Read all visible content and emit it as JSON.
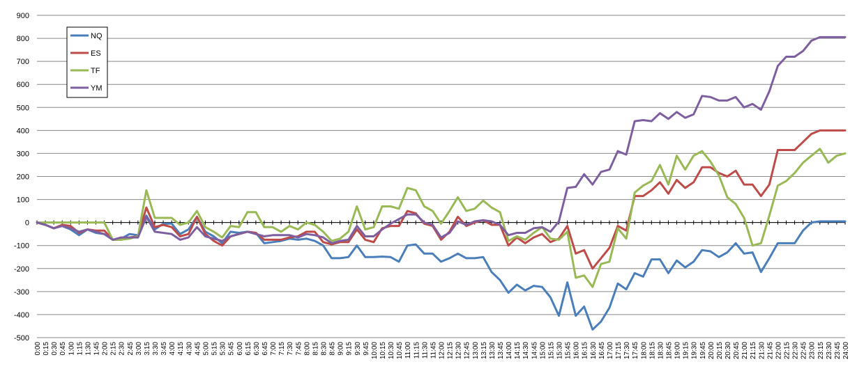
{
  "chart_data": {
    "type": "line",
    "title": "",
    "xlabel": "",
    "ylabel": "",
    "ylim": [
      -500,
      900
    ],
    "yticks": [
      -500,
      -400,
      -300,
      -200,
      -100,
      0,
      100,
      200,
      300,
      400,
      500,
      600,
      700,
      800,
      900
    ],
    "grid": "horizontal",
    "legend_position": "top-left",
    "x": [
      "0:00",
      "0:15",
      "0:30",
      "0:45",
      "1:00",
      "1:15",
      "1:30",
      "1:45",
      "2:00",
      "2:15",
      "2:30",
      "2:45",
      "3:00",
      "3:15",
      "3:30",
      "3:45",
      "4:00",
      "4:15",
      "4:30",
      "4:45",
      "5:00",
      "5:15",
      "5:30",
      "5:45",
      "6:00",
      "6:15",
      "6:30",
      "6:45",
      "7:00",
      "7:15",
      "7:30",
      "7:45",
      "8:00",
      "8:15",
      "8:30",
      "8:45",
      "9:00",
      "9:15",
      "9:30",
      "9:45",
      "10:00",
      "10:15",
      "10:30",
      "10:45",
      "11:00",
      "11:15",
      "11:30",
      "11:45",
      "12:00",
      "12:15",
      "12:30",
      "12:45",
      "13:00",
      "13:15",
      "13:30",
      "13:45",
      "14:00",
      "14:15",
      "14:30",
      "14:45",
      "15:00",
      "15:15",
      "15:30",
      "15:45",
      "16:00",
      "16:15",
      "16:30",
      "16:45",
      "17:00",
      "17:15",
      "17:30",
      "17:45",
      "18:00",
      "18:15",
      "18:30",
      "18:45",
      "19:00",
      "19:15",
      "19:30",
      "19:45",
      "20:00",
      "20:15",
      "20:30",
      "20:45",
      "21:00",
      "21:15",
      "21:30",
      "21:45",
      "22:00",
      "22:15",
      "22:30",
      "22:45",
      "23:00",
      "23:15",
      "23:30",
      "23:45",
      "24:00"
    ],
    "series": [
      {
        "name": "NQ",
        "color": "#4a7ebb",
        "values": [
          0,
          -10,
          -25,
          -15,
          -30,
          -55,
          -30,
          -45,
          -50,
          -75,
          -70,
          -50,
          -55,
          30,
          -30,
          -5,
          -5,
          -50,
          -30,
          25,
          -40,
          -60,
          -90,
          -40,
          -45,
          -40,
          -45,
          -90,
          -85,
          -80,
          -70,
          -75,
          -70,
          -80,
          -100,
          -155,
          -155,
          -150,
          -100,
          -150,
          -150,
          -148,
          -150,
          -170,
          -100,
          -95,
          -135,
          -135,
          -170,
          -155,
          -135,
          -155,
          -155,
          -150,
          -215,
          -250,
          -305,
          -270,
          -295,
          -275,
          -280,
          -325,
          -405,
          -260,
          -405,
          -365,
          -465,
          -430,
          -370,
          -265,
          -290,
          -220,
          -235,
          -160,
          -160,
          -220,
          -165,
          -195,
          -170,
          -120,
          -125,
          -150,
          -130,
          -90,
          -135,
          -130,
          -215,
          -155,
          -90,
          -90,
          -90,
          -35,
          0,
          5,
          5,
          5,
          5
        ]
      },
      {
        "name": "ES",
        "color": "#be4b48",
        "values": [
          0,
          -10,
          -25,
          -10,
          -15,
          -45,
          -30,
          -35,
          -35,
          -75,
          -75,
          -65,
          -60,
          65,
          -20,
          -10,
          -20,
          -60,
          -50,
          25,
          -50,
          -80,
          -100,
          -60,
          -50,
          -40,
          -45,
          -75,
          -75,
          -75,
          -65,
          -60,
          -40,
          -40,
          -85,
          -95,
          -85,
          -85,
          -30,
          -75,
          -85,
          -25,
          -15,
          -15,
          50,
          40,
          -5,
          -15,
          -75,
          -40,
          25,
          -15,
          0,
          10,
          -10,
          -10,
          -100,
          -65,
          -90,
          -65,
          -50,
          -85,
          -70,
          -15,
          -135,
          -120,
          -200,
          -155,
          -110,
          -15,
          -35,
          115,
          115,
          140,
          175,
          125,
          185,
          150,
          175,
          240,
          240,
          215,
          200,
          225,
          165,
          165,
          115,
          165,
          315,
          315,
          315,
          350,
          385,
          400,
          400,
          400,
          400
        ]
      },
      {
        "name": "TF",
        "color": "#98b954",
        "values": [
          0,
          0,
          0,
          0,
          0,
          0,
          0,
          0,
          0,
          -75,
          -75,
          -70,
          -60,
          140,
          20,
          20,
          20,
          -10,
          0,
          50,
          -20,
          -40,
          -65,
          -15,
          -20,
          45,
          45,
          -20,
          -20,
          -40,
          -15,
          -30,
          0,
          -10,
          -40,
          -80,
          -70,
          -40,
          70,
          -30,
          -20,
          70,
          70,
          60,
          150,
          140,
          70,
          50,
          -5,
          50,
          110,
          50,
          60,
          95,
          65,
          45,
          -80,
          -60,
          -75,
          -45,
          -20,
          -70,
          -75,
          -40,
          -240,
          -230,
          -280,
          -180,
          -170,
          -25,
          -70,
          130,
          160,
          180,
          250,
          165,
          290,
          230,
          290,
          310,
          265,
          205,
          110,
          80,
          20,
          -100,
          -90,
          30,
          160,
          180,
          215,
          260,
          290,
          320,
          260,
          290,
          300
        ]
      },
      {
        "name": "YM",
        "color": "#7d5fa0",
        "values": [
          0,
          -10,
          -25,
          -15,
          -25,
          -40,
          -30,
          -40,
          -50,
          -75,
          -65,
          -65,
          -65,
          25,
          -40,
          -45,
          -50,
          -75,
          -65,
          -20,
          -60,
          -70,
          -80,
          -60,
          -50,
          -40,
          -50,
          -60,
          -55,
          -55,
          -55,
          -65,
          -50,
          -55,
          -65,
          -90,
          -80,
          -75,
          -15,
          -60,
          -60,
          -30,
          -5,
          15,
          35,
          35,
          0,
          -10,
          -65,
          -45,
          5,
          -10,
          5,
          10,
          5,
          -10,
          -55,
          -45,
          -45,
          -25,
          -20,
          -40,
          5,
          150,
          155,
          210,
          165,
          220,
          230,
          310,
          295,
          440,
          445,
          440,
          475,
          450,
          480,
          455,
          470,
          550,
          545,
          530,
          530,
          545,
          500,
          515,
          490,
          570,
          680,
          720,
          720,
          745,
          790,
          805,
          805,
          805,
          805
        ]
      }
    ]
  }
}
